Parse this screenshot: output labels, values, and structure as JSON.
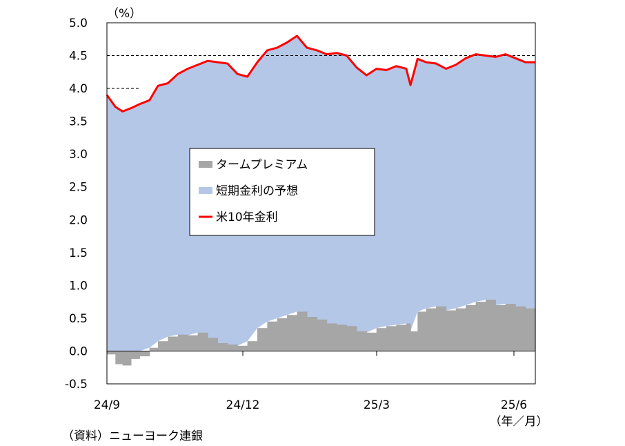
{
  "chart_data": {
    "type": "area",
    "unit_label": "（%）",
    "x_ticks": [
      "24/9",
      "24/12",
      "25/3",
      "25/6"
    ],
    "x_unit_label": "（年／月）",
    "source": "（資料）ニューヨーク連銀",
    "y_ticks": [
      "5.0",
      "4.5",
      "4.0",
      "3.5",
      "3.0",
      "2.5",
      "2.0",
      "1.5",
      "1.0",
      "0.5",
      "0.0",
      "-0.5"
    ],
    "ylim": [
      -0.5,
      5.0
    ],
    "x_range": [
      "2024-09-01",
      "2025-06-30"
    ],
    "reference_lines": [
      {
        "y": 4.5,
        "from": "2024-09-01",
        "to": "2025-06-30",
        "style": "dashed"
      },
      {
        "y": 4.0,
        "from": "2024-09-01",
        "to": "2024-09-24",
        "style": "dashed"
      }
    ],
    "legend": {
      "position": "center",
      "items": [
        {
          "label": "タームプレミアム",
          "color": "#a6a6a6"
        },
        {
          "label": "短期金利の予想",
          "color": "#b4c7e7"
        },
        {
          "label": "米10年金利",
          "color": "#ff0000"
        }
      ]
    },
    "series": [
      {
        "name": "米10年金利",
        "color": "#ff0000",
        "x": [
          "2024-09-01",
          "2024-09-07",
          "2024-09-12",
          "2024-09-18",
          "2024-09-24",
          "2024-10-01",
          "2024-10-07",
          "2024-10-14",
          "2024-10-21",
          "2024-10-28",
          "2024-11-04",
          "2024-11-11",
          "2024-11-18",
          "2024-11-25",
          "2024-12-02",
          "2024-12-09",
          "2024-12-16",
          "2024-12-23",
          "2024-12-30",
          "2025-01-06",
          "2025-01-13",
          "2025-01-20",
          "2025-01-27",
          "2025-02-03",
          "2025-02-10",
          "2025-02-17",
          "2025-02-24",
          "2025-03-03",
          "2025-03-10",
          "2025-03-17",
          "2025-03-24",
          "2025-03-31",
          "2025-04-03",
          "2025-04-08",
          "2025-04-14",
          "2025-04-21",
          "2025-04-28",
          "2025-05-05",
          "2025-05-12",
          "2025-05-19",
          "2025-05-26",
          "2025-06-02",
          "2025-06-09",
          "2025-06-16",
          "2025-06-23",
          "2025-06-30"
        ],
        "values": [
          3.9,
          3.72,
          3.65,
          3.7,
          3.76,
          3.82,
          4.04,
          4.08,
          4.22,
          4.3,
          4.36,
          4.42,
          4.4,
          4.38,
          4.22,
          4.18,
          4.4,
          4.58,
          4.62,
          4.7,
          4.8,
          4.62,
          4.58,
          4.52,
          4.54,
          4.5,
          4.32,
          4.2,
          4.3,
          4.28,
          4.34,
          4.3,
          4.05,
          4.45,
          4.4,
          4.38,
          4.3,
          4.36,
          4.46,
          4.52,
          4.5,
          4.48,
          4.52,
          4.46,
          4.4,
          4.4
        ]
      },
      {
        "name": "タームプレミアム",
        "color": "#a6a6a6",
        "x": [
          "2024-09-01",
          "2024-09-07",
          "2024-09-12",
          "2024-09-18",
          "2024-09-24",
          "2024-10-01",
          "2024-10-07",
          "2024-10-14",
          "2024-10-21",
          "2024-10-28",
          "2024-11-04",
          "2024-11-11",
          "2024-11-18",
          "2024-11-25",
          "2024-12-02",
          "2024-12-09",
          "2024-12-16",
          "2024-12-23",
          "2024-12-30",
          "2025-01-06",
          "2025-01-13",
          "2025-01-20",
          "2025-01-27",
          "2025-02-03",
          "2025-02-10",
          "2025-02-17",
          "2025-02-24",
          "2025-03-03",
          "2025-03-10",
          "2025-03-17",
          "2025-03-24",
          "2025-03-31",
          "2025-04-03",
          "2025-04-08",
          "2025-04-14",
          "2025-04-21",
          "2025-04-28",
          "2025-05-05",
          "2025-05-12",
          "2025-05-19",
          "2025-05-26",
          "2025-06-02",
          "2025-06-09",
          "2025-06-16",
          "2025-06-23",
          "2025-06-30"
        ],
        "values": [
          -0.05,
          -0.2,
          -0.22,
          -0.12,
          -0.08,
          0.05,
          0.15,
          0.22,
          0.25,
          0.24,
          0.28,
          0.2,
          0.12,
          0.1,
          0.08,
          0.15,
          0.35,
          0.45,
          0.5,
          0.55,
          0.6,
          0.52,
          0.48,
          0.42,
          0.4,
          0.38,
          0.3,
          0.28,
          0.35,
          0.38,
          0.4,
          0.42,
          0.3,
          0.6,
          0.65,
          0.68,
          0.62,
          0.65,
          0.7,
          0.75,
          0.78,
          0.7,
          0.72,
          0.68,
          0.65,
          0.65
        ]
      }
    ]
  }
}
